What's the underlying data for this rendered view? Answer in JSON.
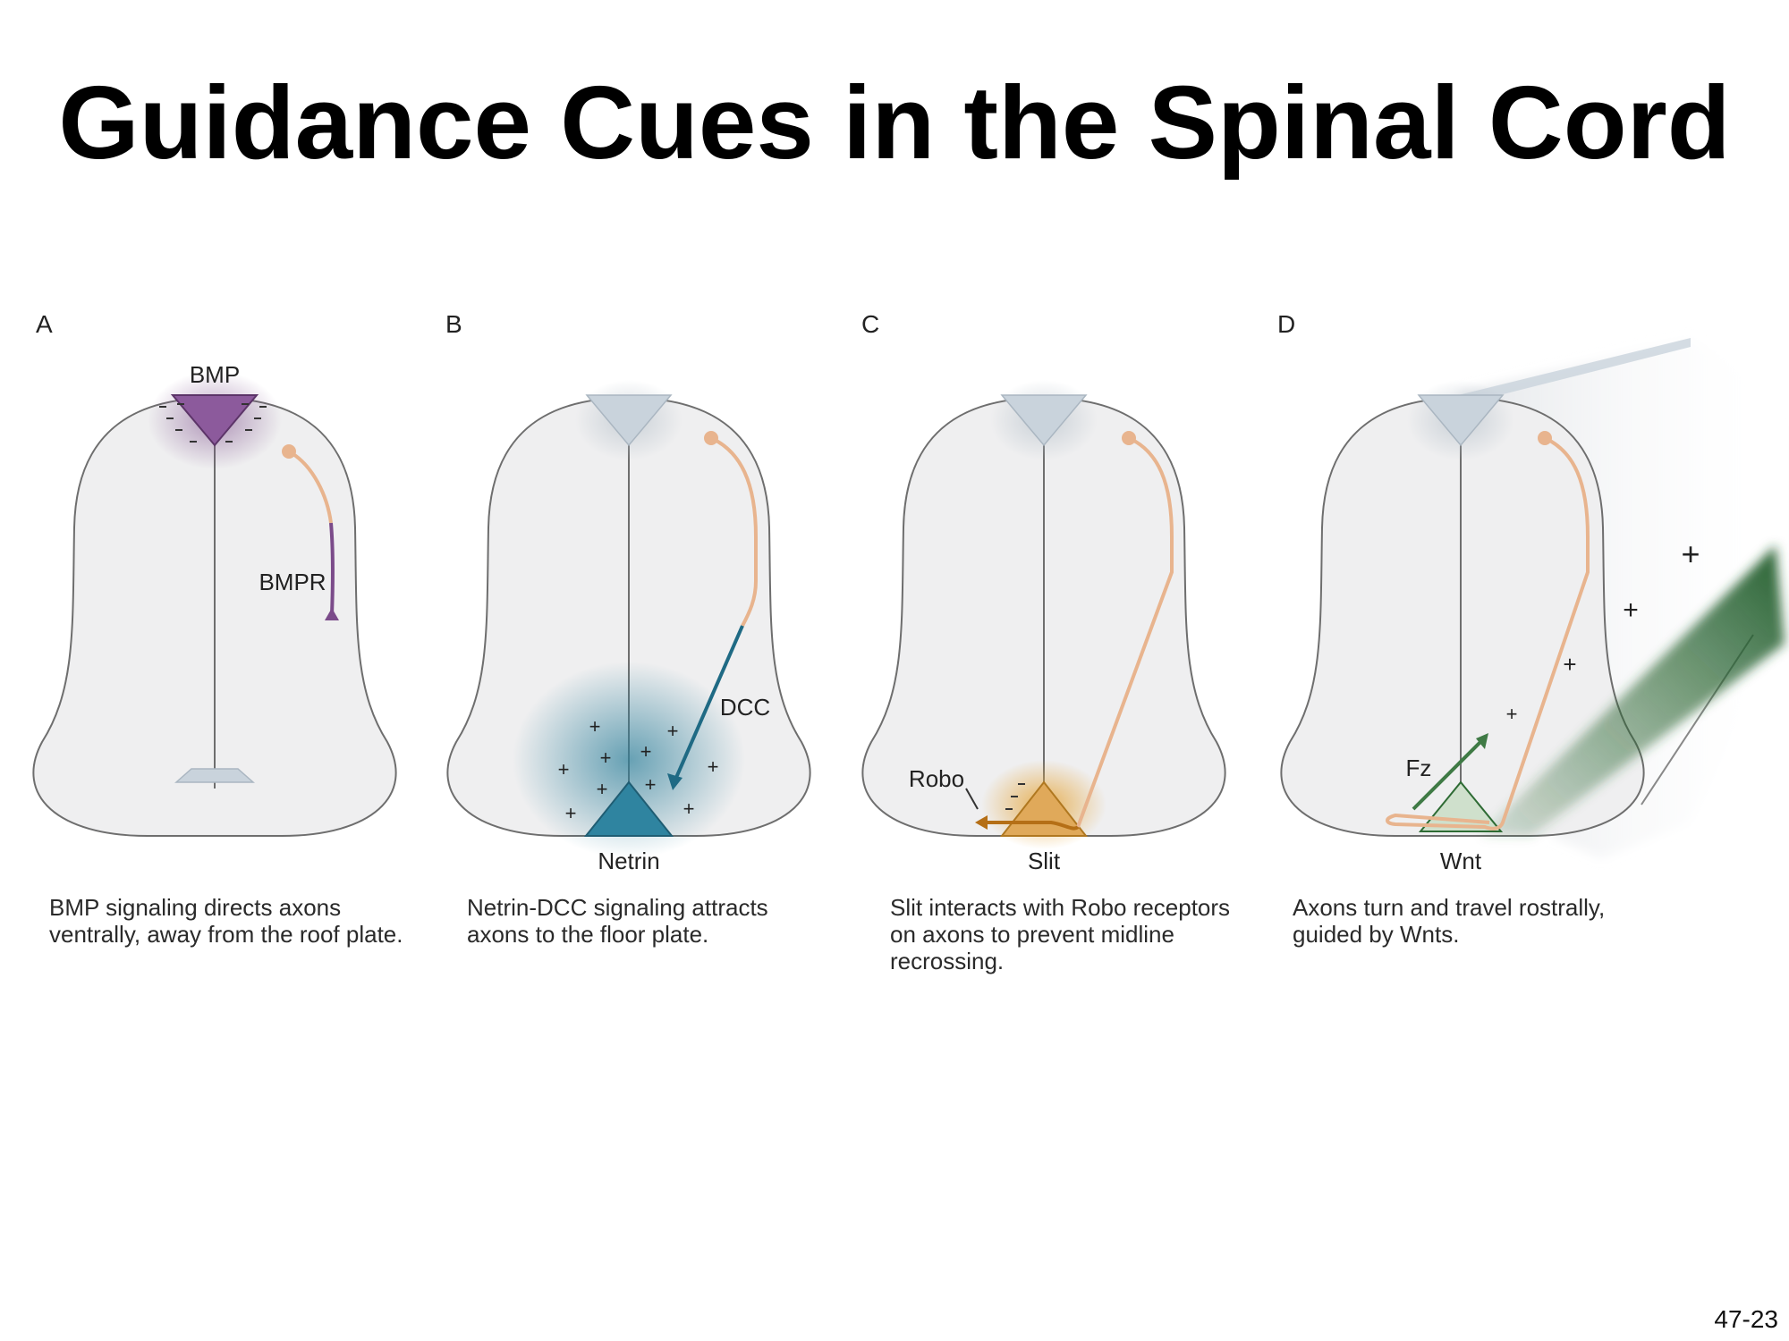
{
  "title": "Guidance Cues in the Spinal Cord",
  "page_number": "47-23",
  "panels": [
    {
      "letter": "A",
      "labels": {
        "cue": "BMP",
        "receptor": "BMPR"
      },
      "caption": "BMP signaling directs axons ventrally, away from the roof plate."
    },
    {
      "letter": "B",
      "labels": {
        "cue": "Netrin",
        "receptor": "DCC"
      },
      "caption": "Netrin-DCC signaling attracts axons to the floor plate."
    },
    {
      "letter": "C",
      "labels": {
        "cue": "Slit",
        "receptor": "Robo"
      },
      "caption": "Slit interacts with Robo receptors on axons to prevent midline recrossing."
    },
    {
      "letter": "D",
      "labels": {
        "cue": "Wnt",
        "receptor": "Fz"
      },
      "caption": "Axons turn and travel rostrally, guided by Wnts."
    }
  ],
  "symbols": {
    "attractive": "+",
    "repulsive": "–"
  },
  "colors": {
    "bmp": "#7b4b8a",
    "netrin": "#2c7f9a",
    "slit": "#d89a3c",
    "wnt": "#2e6b34",
    "axon": "#e8b48e",
    "cord_fill": "#efeff0",
    "cord_stroke": "#6e6e6e",
    "plate": "#c9d3dc"
  }
}
